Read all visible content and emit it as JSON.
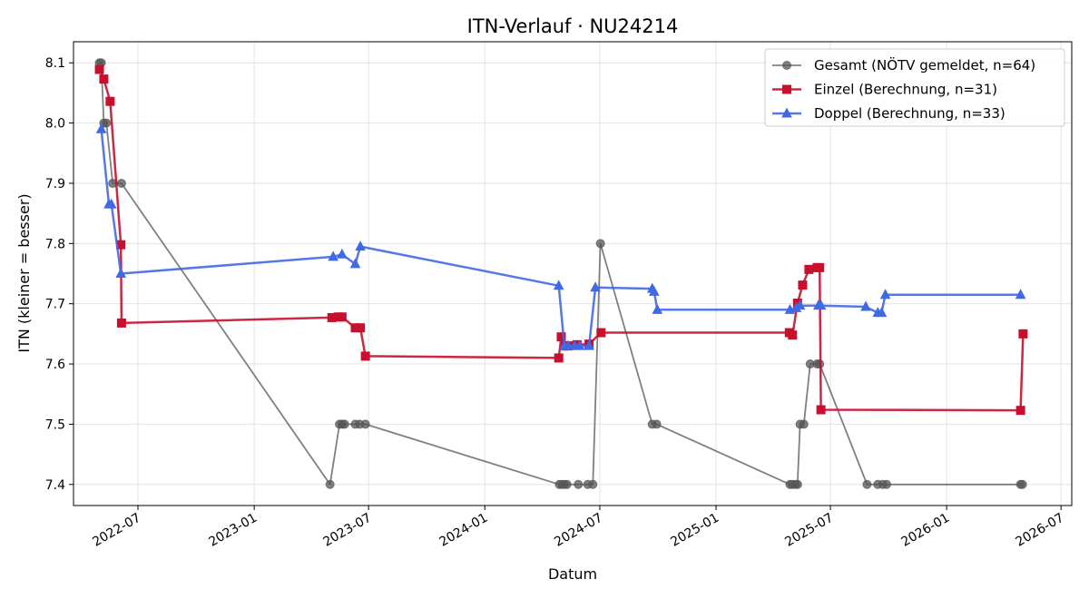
{
  "chart_data": {
    "type": "line",
    "title": "ITN-Verlauf · NU24214",
    "xlabel": "Datum",
    "ylabel": "ITN  (kleiner = besser)",
    "xlim": [
      "2022-03-21",
      "2026-07-18"
    ],
    "ylim": [
      7.365,
      8.135
    ],
    "grid": true,
    "legend_position": "top-right",
    "x_tick_labels": [
      "2022-07",
      "2023-01",
      "2023-07",
      "2024-01",
      "2024-07",
      "2025-01",
      "2025-07",
      "2026-01",
      "2026-07"
    ],
    "y_tick_labels": [
      "7.4",
      "7.5",
      "7.6",
      "7.7",
      "7.8",
      "7.9",
      "8.0",
      "8.1"
    ],
    "series": [
      {
        "name": "Gesamt (NÖTV gemeldet, n=64)",
        "color": "#555555",
        "marker": "circle",
        "points": [
          [
            "2022-05-01",
            8.1
          ],
          [
            "2022-05-04",
            8.1
          ],
          [
            "2022-05-08",
            8.0
          ],
          [
            "2022-05-12",
            8.0
          ],
          [
            "2022-05-22",
            7.9
          ],
          [
            "2022-06-05",
            7.9
          ],
          [
            "2023-05-01",
            7.4
          ],
          [
            "2023-05-16",
            7.5
          ],
          [
            "2023-05-20",
            7.5
          ],
          [
            "2023-05-24",
            7.5
          ],
          [
            "2023-06-10",
            7.5
          ],
          [
            "2023-06-17",
            7.5
          ],
          [
            "2023-06-26",
            7.5
          ],
          [
            "2024-04-28",
            7.4
          ],
          [
            "2024-05-02",
            7.4
          ],
          [
            "2024-05-06",
            7.4
          ],
          [
            "2024-05-10",
            7.4
          ],
          [
            "2024-05-28",
            7.4
          ],
          [
            "2024-06-12",
            7.4
          ],
          [
            "2024-06-20",
            7.4
          ],
          [
            "2024-07-02",
            7.8
          ],
          [
            "2024-09-22",
            7.5
          ],
          [
            "2024-09-29",
            7.5
          ],
          [
            "2025-04-28",
            7.4
          ],
          [
            "2025-05-02",
            7.4
          ],
          [
            "2025-05-07",
            7.4
          ],
          [
            "2025-05-10",
            7.4
          ],
          [
            "2025-05-14",
            7.5
          ],
          [
            "2025-05-20",
            7.5
          ],
          [
            "2025-05-30",
            7.6
          ],
          [
            "2025-06-10",
            7.6
          ],
          [
            "2025-06-14",
            7.6
          ],
          [
            "2025-08-28",
            7.4
          ],
          [
            "2025-09-14",
            7.4
          ],
          [
            "2025-09-22",
            7.4
          ],
          [
            "2025-09-28",
            7.4
          ],
          [
            "2026-04-28",
            7.4
          ],
          [
            "2026-05-01",
            7.4
          ]
        ]
      },
      {
        "name": "Einzel (Berechnung, n=31)",
        "color": "#c8102e",
        "marker": "square",
        "points": [
          [
            "2022-05-01",
            8.089
          ],
          [
            "2022-05-08",
            8.073
          ],
          [
            "2022-05-18",
            8.036
          ],
          [
            "2022-06-04",
            7.798
          ],
          [
            "2022-06-05",
            7.668
          ],
          [
            "2023-05-04",
            7.677
          ],
          [
            "2023-05-14",
            7.678
          ],
          [
            "2023-05-20",
            7.678
          ],
          [
            "2023-06-10",
            7.66
          ],
          [
            "2023-06-18",
            7.66
          ],
          [
            "2023-06-26",
            7.613
          ],
          [
            "2024-04-27",
            7.61
          ],
          [
            "2024-05-01",
            7.645
          ],
          [
            "2024-05-08",
            7.63
          ],
          [
            "2024-05-12",
            7.63
          ],
          [
            "2024-05-26",
            7.632
          ],
          [
            "2024-06-14",
            7.633
          ],
          [
            "2024-07-03",
            7.652
          ],
          [
            "2025-04-27",
            7.652
          ],
          [
            "2025-05-02",
            7.648
          ],
          [
            "2025-05-10",
            7.701
          ],
          [
            "2025-05-18",
            7.731
          ],
          [
            "2025-05-28",
            7.757
          ],
          [
            "2025-06-10",
            7.76
          ],
          [
            "2025-06-14",
            7.76
          ],
          [
            "2025-06-16",
            7.524
          ],
          [
            "2026-04-28",
            7.523
          ],
          [
            "2026-05-02",
            7.65
          ]
        ]
      },
      {
        "name": "Doppel (Berechnung, n=33)",
        "color": "#4169e1",
        "marker": "triangle",
        "points": [
          [
            "2022-05-04",
            7.99
          ],
          [
            "2022-05-16",
            7.865
          ],
          [
            "2022-05-20",
            7.865
          ],
          [
            "2022-06-04",
            7.75
          ],
          [
            "2023-05-06",
            7.778
          ],
          [
            "2023-05-20",
            7.782
          ],
          [
            "2023-06-10",
            7.766
          ],
          [
            "2023-06-18",
            7.795
          ],
          [
            "2024-04-27",
            7.73
          ],
          [
            "2024-05-06",
            7.63
          ],
          [
            "2024-05-12",
            7.63
          ],
          [
            "2024-05-22",
            7.63
          ],
          [
            "2024-05-30",
            7.63
          ],
          [
            "2024-06-14",
            7.63
          ],
          [
            "2024-06-24",
            7.727
          ],
          [
            "2024-09-22",
            7.725
          ],
          [
            "2024-09-25",
            7.72
          ],
          [
            "2024-09-30",
            7.69
          ],
          [
            "2025-04-28",
            7.69
          ],
          [
            "2025-05-08",
            7.693
          ],
          [
            "2025-05-14",
            7.697
          ],
          [
            "2025-06-12",
            7.697
          ],
          [
            "2025-06-16",
            7.697
          ],
          [
            "2025-08-26",
            7.695
          ],
          [
            "2025-09-14",
            7.685
          ],
          [
            "2025-09-20",
            7.685
          ],
          [
            "2025-09-26",
            7.715
          ],
          [
            "2026-04-28",
            7.715
          ]
        ]
      }
    ]
  }
}
